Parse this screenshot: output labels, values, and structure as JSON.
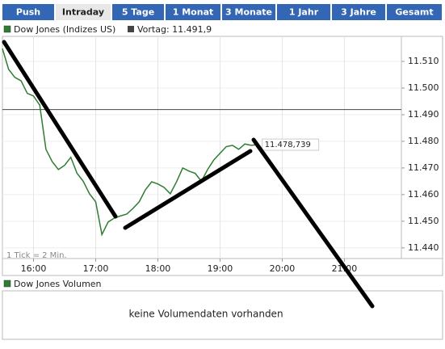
{
  "tabs": [
    "Push",
    "Intraday",
    "5 Tage",
    "1 Monat",
    "3 Monate",
    "1 Jahr",
    "3 Jahre",
    "Gesamt"
  ],
  "active_tab": 1,
  "chart_data": {
    "type": "line",
    "series": [
      {
        "name": "Dow Jones (Indizes US)",
        "color": "#2e7d32",
        "x": [
          "15:30",
          "15:36",
          "15:42",
          "15:48",
          "15:54",
          "16:00",
          "16:06",
          "16:12",
          "16:18",
          "16:24",
          "16:30",
          "16:36",
          "16:42",
          "16:48",
          "16:54",
          "17:00",
          "17:06",
          "17:12",
          "17:18",
          "17:24",
          "17:30",
          "17:36",
          "17:42",
          "17:48",
          "17:54",
          "18:00",
          "18:06",
          "18:12",
          "18:18",
          "18:24",
          "18:30",
          "18:36",
          "18:42",
          "18:48",
          "18:54",
          "19:00",
          "19:06",
          "19:12",
          "19:18",
          "19:24",
          "19:30",
          "19:36"
        ],
        "values": [
          11514.8,
          11507,
          11504,
          11502.7,
          11498,
          11497,
          11493.6,
          11477,
          11472.4,
          11469.4,
          11471,
          11474,
          11468,
          11465,
          11460.3,
          11457.3,
          11445,
          11449.7,
          11451.2,
          11452,
          11452.7,
          11454.8,
          11457.3,
          11461.8,
          11464.8,
          11464,
          11462.7,
          11460.3,
          11464.8,
          11470,
          11468.8,
          11468,
          11465,
          11469.4,
          11473,
          11475.5,
          11478,
          11478.5,
          11477,
          11479,
          11478.5,
          11478.739
        ]
      }
    ],
    "previous_close": {
      "name": "Vortag: 11.491,9",
      "value": 11491.9,
      "color": "#444"
    },
    "last_price": {
      "value": 11478.739,
      "label": "11.478,739"
    },
    "xlim": [
      "15:30",
      "21:55"
    ],
    "xticks": [
      "16:00",
      "17:00",
      "18:00",
      "19:00",
      "20:00",
      "21:00"
    ],
    "ylim": [
      11436,
      11519.4
    ],
    "yticks": [
      {
        "value": 11440,
        "label": "11.440"
      },
      {
        "value": 11450,
        "label": "11.450"
      },
      {
        "value": 11460,
        "label": "11.460"
      },
      {
        "value": 11470,
        "label": "11.470"
      },
      {
        "value": 11480,
        "label": "11.480"
      },
      {
        "value": 11490,
        "label": "11.490"
      },
      {
        "value": 11500,
        "label": "11.500"
      },
      {
        "value": 11510,
        "label": "11.510"
      }
    ],
    "grid": true,
    "note": "1 Tick = 2 Min."
  },
  "volume": {
    "legend": "Dow Jones Volumen",
    "message": "keine Volumendaten vorhanden"
  }
}
